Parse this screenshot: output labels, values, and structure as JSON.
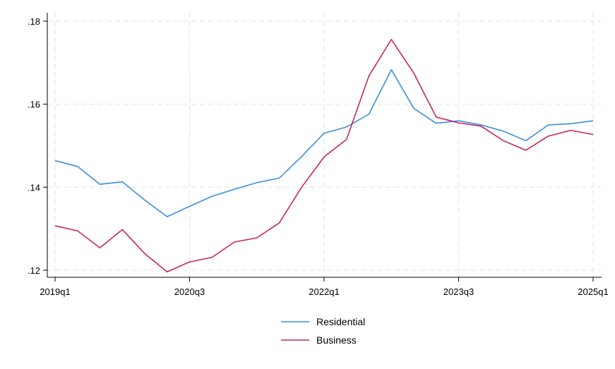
{
  "chart_data": {
    "type": "line",
    "x": [
      "2019q1",
      "2019q2",
      "2019q3",
      "2019q4",
      "2020q1",
      "2020q2",
      "2020q3",
      "2020q4",
      "2021q1",
      "2021q2",
      "2021q3",
      "2021q4",
      "2022q1",
      "2022q2",
      "2022q3",
      "2022q4",
      "2023q1",
      "2023q2",
      "2023q3",
      "2023q4",
      "2024q1",
      "2024q2",
      "2024q3",
      "2024q4",
      "2025q1"
    ],
    "series": [
      {
        "name": "Residential",
        "color": "#3a8fe0",
        "values": [
          0.1464,
          0.145,
          0.1407,
          0.1413,
          0.1369,
          0.1329,
          0.1354,
          0.1378,
          0.1395,
          0.1411,
          0.1422,
          0.1474,
          0.153,
          0.1545,
          0.1576,
          0.1683,
          0.159,
          0.1554,
          0.156,
          0.155,
          0.1535,
          0.1512,
          0.155,
          0.1553,
          0.156
        ]
      },
      {
        "name": "Business",
        "color": "#c8245c",
        "values": [
          0.1307,
          0.1295,
          0.1254,
          0.1298,
          0.124,
          0.1196,
          0.122,
          0.1231,
          0.1268,
          0.1278,
          0.1314,
          0.14,
          0.1473,
          0.1515,
          0.1668,
          0.1756,
          0.1675,
          0.1569,
          0.1555,
          0.1547,
          0.1512,
          0.1489,
          0.1523,
          0.1537,
          0.1527
        ]
      }
    ],
    "x_ticks": [
      "2019q1",
      "2020q3",
      "2022q1",
      "2023q3",
      "2025q1"
    ],
    "y_ticks": [
      ".12",
      ".14",
      ".16",
      ".18"
    ],
    "ylim": [
      0.12,
      0.18
    ],
    "xlabel": "",
    "ylabel": "",
    "title": "",
    "grid": true,
    "legend_position": "bottom-center"
  }
}
